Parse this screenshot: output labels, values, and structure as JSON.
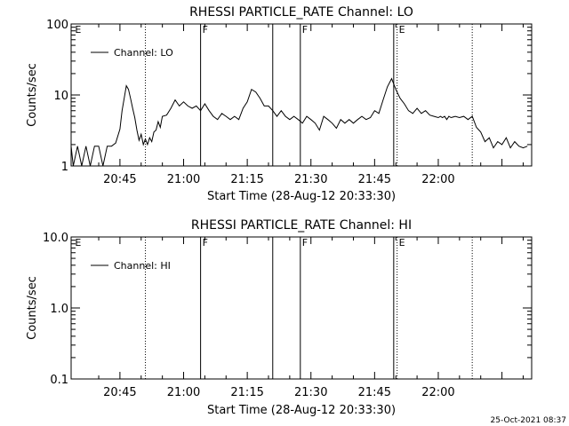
{
  "chart_data": [
    {
      "type": "line",
      "title": "RHESSI PARTICLE_RATE Channel: LO",
      "xlabel": "Start Time (28-Aug-12 20:33:30)",
      "ylabel": "Counts/sec",
      "y_scale": "log",
      "ylim": [
        1,
        100
      ],
      "xlim_min": [
        33.5,
        142
      ],
      "x_tick_labels": [
        "20:45",
        "21:00",
        "21:15",
        "21:30",
        "21:45",
        "22:00"
      ],
      "y_tick_labels": [
        "1",
        "10",
        "100"
      ],
      "legend": "Channel: LO",
      "legend_position": "top-left",
      "series": [
        {
          "name": "Channel: LO",
          "x": [
            33.5,
            34,
            35,
            36,
            37,
            38,
            39,
            40,
            41,
            42,
            43,
            44,
            45,
            45.5,
            46,
            46.5,
            47,
            47.5,
            48,
            48.5,
            49,
            49.5,
            50,
            50.5,
            51,
            51.5,
            52,
            52.5,
            53,
            53.5,
            54,
            54.5,
            55,
            56,
            57,
            58,
            59,
            60,
            61,
            62,
            63,
            64,
            65,
            66,
            67,
            68,
            69,
            70,
            71,
            72,
            73,
            74,
            75,
            76,
            77,
            78,
            79,
            80,
            81,
            82,
            83,
            84,
            85,
            86,
            87,
            88,
            89,
            90,
            91,
            92,
            93,
            94,
            95,
            96,
            97,
            98,
            99,
            100,
            101,
            102,
            103,
            104,
            105,
            106,
            107,
            108,
            109,
            110,
            111,
            112,
            113,
            114,
            115,
            116,
            117,
            118,
            119,
            120,
            120.5,
            121,
            121.5,
            122,
            122.5,
            123,
            124,
            125,
            126,
            127,
            128,
            129,
            130,
            131,
            132,
            133,
            134,
            135,
            136,
            137,
            138,
            139,
            140,
            141
          ],
          "values": [
            1.9,
            1,
            1.9,
            1,
            1.9,
            1,
            1.9,
            1.9,
            1,
            1.9,
            1.9,
            2.1,
            3.3,
            6,
            9,
            13.5,
            12,
            9,
            6.5,
            4.8,
            3.2,
            2.3,
            2.8,
            2,
            2.4,
            2,
            2.5,
            2.2,
            3,
            3.2,
            4.2,
            3.5,
            5,
            5.2,
            6.5,
            8.5,
            7,
            8,
            7,
            6.5,
            7,
            6,
            7.5,
            6,
            5,
            4.5,
            5.5,
            5,
            4.5,
            5,
            4.5,
            6.5,
            8,
            12,
            11,
            9,
            7,
            7,
            6,
            5,
            6,
            5,
            4.5,
            5,
            4.5,
            4,
            5,
            4.5,
            4,
            3.2,
            5,
            4.5,
            4,
            3.4,
            4.5,
            4,
            4.5,
            4,
            4.5,
            5,
            4.5,
            4.8,
            6,
            5.5,
            8.5,
            13,
            17,
            12,
            9,
            7.5,
            6,
            5.5,
            6.5,
            5.5,
            6,
            5.2,
            5,
            4.8,
            5,
            4.8,
            5,
            4.5,
            5,
            4.8,
            5,
            4.8,
            5,
            4.5,
            5,
            3.5,
            3,
            2.2,
            2.5,
            1.8,
            2.2,
            2,
            2.5,
            1.8,
            2.2,
            1.9,
            1.8,
            1.9
          ],
          "color": "#000000"
        }
      ],
      "vertical_markers": [
        {
          "label": "E",
          "x": 34,
          "style": "none"
        },
        {
          "label": "",
          "x": 51,
          "style": "dotted"
        },
        {
          "label": "F",
          "x": 64,
          "style": "solid"
        },
        {
          "label": "",
          "x": 81,
          "style": "solid"
        },
        {
          "label": "F",
          "x": 87.5,
          "style": "solid"
        },
        {
          "label": "",
          "x": 109.5,
          "style": "solid"
        },
        {
          "label": "E",
          "x": 110.3,
          "style": "dotted"
        },
        {
          "label": "",
          "x": 128,
          "style": "dotted"
        }
      ]
    },
    {
      "type": "line",
      "title": "RHESSI PARTICLE_RATE Channel: HI",
      "xlabel": "Start Time (28-Aug-12 20:33:30)",
      "ylabel": "Counts/sec",
      "y_scale": "log",
      "ylim": [
        0.1,
        10
      ],
      "xlim_min": [
        33.5,
        142
      ],
      "x_tick_labels": [
        "20:45",
        "21:00",
        "21:15",
        "21:30",
        "21:45",
        "22:00"
      ],
      "y_tick_labels": [
        "0.1",
        "1.0",
        "10.0"
      ],
      "legend": "Channel: HI",
      "legend_position": "top-left",
      "series": [
        {
          "name": "Channel: HI",
          "x": [],
          "values": [],
          "color": "#000000"
        }
      ],
      "vertical_markers": [
        {
          "label": "E",
          "x": 34,
          "style": "none"
        },
        {
          "label": "",
          "x": 51,
          "style": "dotted"
        },
        {
          "label": "F",
          "x": 64,
          "style": "solid"
        },
        {
          "label": "",
          "x": 81,
          "style": "solid"
        },
        {
          "label": "F",
          "x": 87.5,
          "style": "solid"
        },
        {
          "label": "",
          "x": 109.5,
          "style": "solid"
        },
        {
          "label": "E",
          "x": 110.3,
          "style": "dotted"
        },
        {
          "label": "",
          "x": 128,
          "style": "dotted"
        }
      ]
    }
  ],
  "footer": {
    "timestamp": "25-Oct-2021 08:37"
  }
}
